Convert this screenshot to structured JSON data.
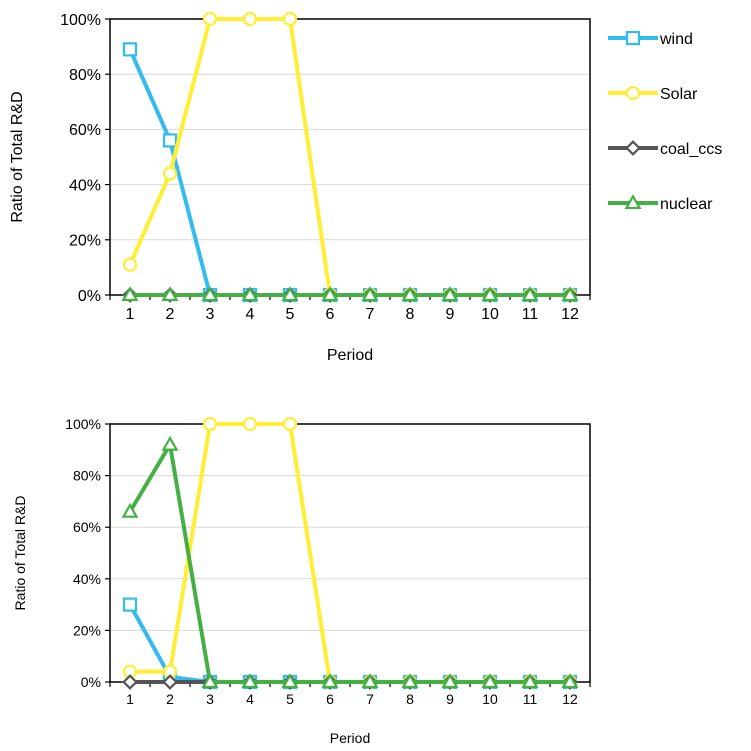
{
  "legend": [
    {
      "name": "wind",
      "color": "#33bbee",
      "marker": "square"
    },
    {
      "name": "Solar",
      "color": "#ffee33",
      "marker": "circle"
    },
    {
      "name": "coal_ccs",
      "color": "#555555",
      "marker": "diamond"
    },
    {
      "name": "nuclear",
      "color": "#44b044",
      "marker": "triangle"
    }
  ],
  "chart_data": [
    {
      "type": "line",
      "x": [
        1,
        2,
        3,
        4,
        5,
        6,
        7,
        8,
        9,
        10,
        11,
        12
      ],
      "xlabel": "Period",
      "ylabel": "Ratio of Total R&D",
      "ylim": [
        0,
        100
      ],
      "yticks": [
        "0%",
        "20%",
        "40%",
        "60%",
        "80%",
        "100%"
      ],
      "grid": true,
      "series": [
        {
          "name": "wind",
          "values": [
            89,
            56,
            0,
            0,
            0,
            0,
            0,
            0,
            0,
            0,
            0,
            0
          ]
        },
        {
          "name": "Solar",
          "values": [
            11,
            44,
            100,
            100,
            100,
            0,
            0,
            0,
            0,
            0,
            0,
            0
          ]
        },
        {
          "name": "coal_ccs",
          "values": [
            0,
            0,
            0,
            0,
            0,
            0,
            0,
            0,
            0,
            0,
            0,
            0
          ]
        },
        {
          "name": "nuclear",
          "values": [
            0,
            0,
            0,
            0,
            0,
            0,
            0,
            0,
            0,
            0,
            0,
            0
          ]
        }
      ]
    },
    {
      "type": "line",
      "x": [
        1,
        2,
        3,
        4,
        5,
        6,
        7,
        8,
        9,
        10,
        11,
        12
      ],
      "xlabel": "Period",
      "ylabel": "Ratio of Total R&D",
      "ylim": [
        0,
        100
      ],
      "yticks": [
        "0%",
        "20%",
        "40%",
        "60%",
        "80%",
        "100%"
      ],
      "grid": true,
      "series": [
        {
          "name": "wind",
          "values": [
            30,
            2,
            0,
            0,
            0,
            0,
            0,
            0,
            0,
            0,
            0,
            0
          ]
        },
        {
          "name": "Solar",
          "values": [
            4,
            4,
            100,
            100,
            100,
            0,
            0,
            0,
            0,
            0,
            0,
            0
          ]
        },
        {
          "name": "coal_ccs",
          "values": [
            0,
            0,
            0,
            0,
            0,
            0,
            0,
            0,
            0,
            0,
            0,
            0
          ]
        },
        {
          "name": "nuclear",
          "values": [
            66,
            92,
            0,
            0,
            0,
            0,
            0,
            0,
            0,
            0,
            0,
            0
          ]
        }
      ]
    }
  ]
}
